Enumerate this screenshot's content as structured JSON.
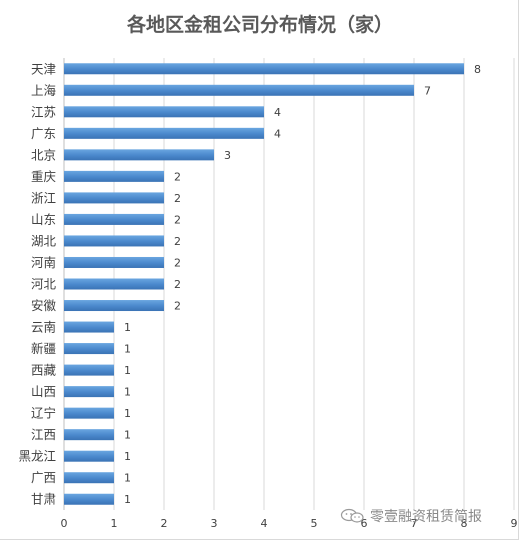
{
  "chart_data": {
    "type": "bar",
    "orientation": "horizontal",
    "title": "各地区金租公司分布情况（家）",
    "categories": [
      "天津",
      "上海",
      "江苏",
      "广东",
      "北京",
      "重庆",
      "浙江",
      "山东",
      "湖北",
      "河南",
      "河北",
      "安徽",
      "云南",
      "新疆",
      "西藏",
      "山西",
      "辽宁",
      "江西",
      "黑龙江",
      "广西",
      "甘肃"
    ],
    "values": [
      8,
      7,
      4,
      4,
      3,
      2,
      2,
      2,
      2,
      2,
      2,
      2,
      1,
      1,
      1,
      1,
      1,
      1,
      1,
      1,
      1
    ],
    "xlim": [
      0,
      9
    ],
    "x_ticks": [
      0,
      1,
      2,
      3,
      4,
      5,
      6,
      7,
      8,
      9
    ],
    "grid": true,
    "data_labels": true,
    "bar_color": "#4f8fd3"
  },
  "watermark": {
    "text": "零壹融资租赁简报",
    "logo_icon": "wechat-logo-icon"
  }
}
